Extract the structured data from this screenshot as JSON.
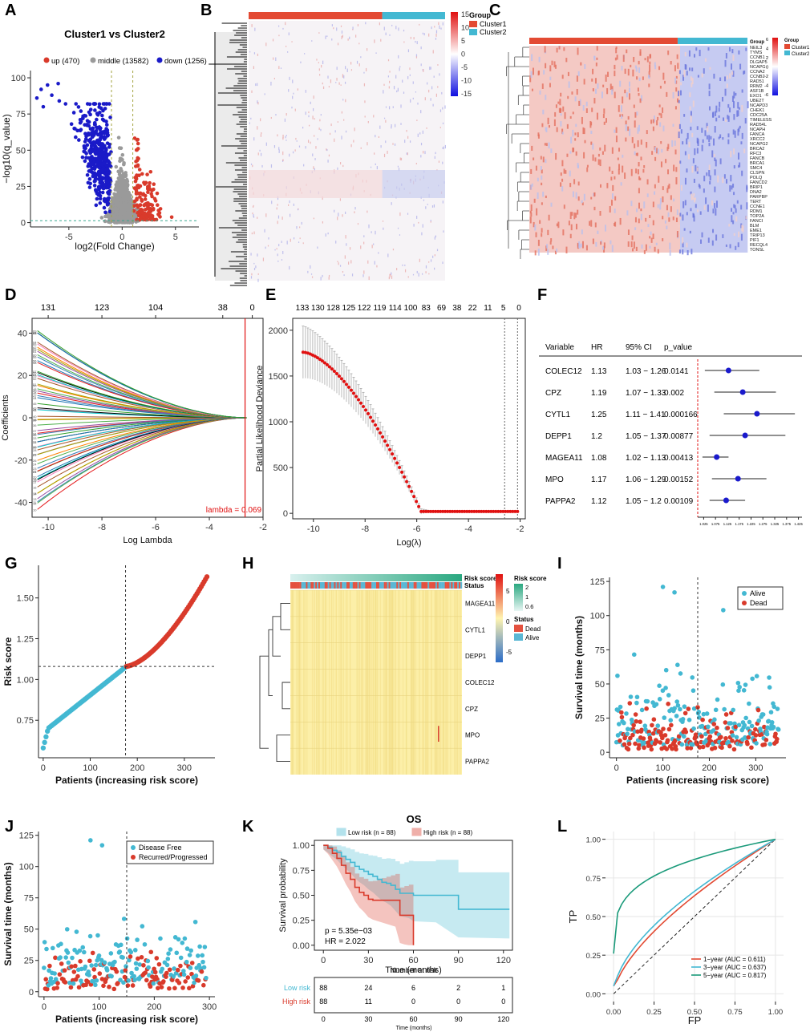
{
  "panel_labels": [
    "A",
    "B",
    "C",
    "D",
    "E",
    "F",
    "G",
    "H",
    "I",
    "J",
    "K",
    "L"
  ],
  "colors": {
    "red": "#d93a2b",
    "blue": "#1a1ac8",
    "grey": "#9a9a9a",
    "cyan": "#43b8d2",
    "green": "#1a9a7a",
    "heat_red": "#e34a33",
    "heat_blue": "#2b3bd8",
    "yellow": "#fcefa8"
  },
  "chart_data": [
    {
      "id": "A",
      "type": "scatter",
      "title": "Cluster1 vs Cluster2",
      "legend": [
        {
          "label": "up (470)",
          "color": "#d93a2b"
        },
        {
          "label": "middle (13582)",
          "color": "#9a9a9a"
        },
        {
          "label": "down (1256)",
          "color": "#1a1ac8"
        }
      ],
      "xlabel": "log2(Fold Change)",
      "ylabel": "−log10(q_value)",
      "xlim": [
        -8.6,
        7.2
      ],
      "ylim": [
        -3,
        105
      ],
      "xticks": [
        -5,
        0,
        5
      ],
      "yticks": [
        0,
        25,
        50,
        75,
        100
      ],
      "vlines": [
        -1,
        1
      ],
      "hline": 1.3
    },
    {
      "id": "B",
      "type": "heatmap",
      "legend_title": "Group",
      "groups": [
        "Cluster1",
        "Cluster2"
      ],
      "scale_ticks": [
        15,
        10,
        5,
        0,
        -5,
        -10,
        -15
      ],
      "group_split": 0.68
    },
    {
      "id": "C",
      "type": "heatmap",
      "legend_title": "Group",
      "groups": [
        "Cluster1",
        "Cluster2"
      ],
      "group_row_label": "Group",
      "scale_ticks": [
        6,
        4,
        2,
        0,
        -2,
        -4,
        -6
      ],
      "group_split": 0.68,
      "genes": [
        "NEIL3",
        "TYMS",
        "CCNB1",
        "DLGAP5",
        "NCAPG",
        "CCNA2",
        "CCNB2",
        "RAD51",
        "RRM2",
        "ASF1B",
        "EXO1",
        "UBE2T",
        "NCAPD3",
        "CHEK1",
        "CDC25A",
        "TIMELESS",
        "RAD54L",
        "NCAPH",
        "FANCA",
        "XRCC2",
        "NCAPG2",
        "BRCA2",
        "RFC3",
        "FANCB",
        "BRCA1",
        "SMC4",
        "CLSPN",
        "POLQ",
        "FANCD2",
        "BRIP1",
        "DNA2",
        "PARPBP",
        "TERT",
        "CCNE1",
        "RDM1",
        "TOP2A",
        "FANCI",
        "BLM",
        "EME1",
        "TRIP13",
        "PIF1",
        "RECQL4",
        "TONSL"
      ]
    },
    {
      "id": "D",
      "type": "line",
      "top_ticks": [
        "131",
        "123",
        "104",
        "38",
        "0"
      ],
      "xlabel": "Log Lambda",
      "ylabel": "Coefficients",
      "xlim": [
        -10.6,
        -2.0
      ],
      "ylim": [
        -47,
        47
      ],
      "xticks": [
        -10,
        -8,
        -6,
        -4,
        -2
      ],
      "yticks": [
        -40,
        -20,
        0,
        20,
        40
      ],
      "lambda_line": -2.67,
      "lambda_label": "lambda = 0.069"
    },
    {
      "id": "E",
      "type": "line",
      "top_ticks": [
        "133",
        "130",
        "128",
        "125",
        "122",
        "119",
        "114",
        "100",
        "83",
        "69",
        "38",
        "22",
        "11",
        "5",
        "0"
      ],
      "xlabel": "Log(λ)",
      "ylabel": "Partial Likelihood Deviance",
      "xlim": [
        -10.8,
        -1.8
      ],
      "ylim": [
        -60,
        2130
      ],
      "xticks": [
        -10,
        -8,
        -6,
        -4,
        -2
      ],
      "yticks": [
        0,
        500,
        1000,
        1500,
        2000
      ],
      "vlines": [
        -2.6,
        -2.1
      ],
      "x_start": -10.4,
      "x_end": -2.1,
      "y_start": 1740
    },
    {
      "id": "F",
      "type": "table",
      "columns": [
        "Variable",
        "HR",
        "95% CI",
        "p_value"
      ],
      "rows": [
        {
          "variable": "COLEC12",
          "hr": "1.13",
          "ci": "1.03 − 1.26",
          "p": "0.0141",
          "hr_v": 1.13,
          "lo": 1.03,
          "hi": 1.26
        },
        {
          "variable": "CPZ",
          "hr": "1.19",
          "ci": "1.07 − 1.33",
          "p": "0.002",
          "hr_v": 1.19,
          "lo": 1.07,
          "hi": 1.33
        },
        {
          "variable": "CYTL1",
          "hr": "1.25",
          "ci": "1.11 − 1.41",
          "p": "0.000166",
          "hr_v": 1.25,
          "lo": 1.11,
          "hi": 1.41
        },
        {
          "variable": "DEPP1",
          "hr": "1.2",
          "ci": "1.05 − 1.37",
          "p": "0.00877",
          "hr_v": 1.2,
          "lo": 1.05,
          "hi": 1.37
        },
        {
          "variable": "MAGEA11",
          "hr": "1.08",
          "ci": "1.02 − 1.13",
          "p": "0.00413",
          "hr_v": 1.08,
          "lo": 1.02,
          "hi": 1.13
        },
        {
          "variable": "MPO",
          "hr": "1.17",
          "ci": "1.06 − 1.29",
          "p": "0.00152",
          "hr_v": 1.17,
          "lo": 1.06,
          "hi": 1.29
        },
        {
          "variable": "PAPPA2",
          "hr": "1.12",
          "ci": "1.05 − 1.2",
          "p": "0.00109",
          "hr_v": 1.12,
          "lo": 1.05,
          "hi": 1.2
        }
      ],
      "axis_ticks": [
        "1.025",
        "1.075",
        "1.125",
        "1.175",
        "1.225",
        "1.275",
        "1.325",
        "1.375",
        "1.425"
      ],
      "axis_range": [
        1.0,
        1.44
      ],
      "ref_line": 1.0
    },
    {
      "id": "G",
      "type": "scatter",
      "xlabel": "Patients (increasing risk score)",
      "ylabel": "Risk score",
      "xlim": [
        -10,
        365
      ],
      "ylim": [
        0.52,
        1.7
      ],
      "xticks": [
        0,
        100,
        200,
        300
      ],
      "yticks": [
        0.75,
        1.0,
        1.25,
        1.5
      ],
      "n": 350,
      "cutoff_x": 175,
      "cutoff_y": 1.08
    },
    {
      "id": "H",
      "type": "heatmap",
      "top_rows": [
        "Risk score",
        "Status"
      ],
      "genes": [
        "MAGEA11",
        "CYTL1",
        "DEPP1",
        "COLEC12",
        "CPZ",
        "MPO",
        "PAPPA2"
      ],
      "scale_ticks": [
        5,
        0,
        -5
      ],
      "legend_risk_title": "Risk score",
      "legend_risk_ticks": [
        2,
        1,
        0.6
      ],
      "legend_status_title": "Status",
      "status_labels": [
        "Dead",
        "Alive"
      ]
    },
    {
      "id": "I",
      "type": "scatter",
      "legend": [
        {
          "label": "Alive",
          "color": "#43b8d2"
        },
        {
          "label": "Dead",
          "color": "#d93a2b"
        }
      ],
      "xlabel": "Patients (increasing risk score)",
      "ylabel": "Survival time (months)",
      "xlim": [
        -15,
        365
      ],
      "ylim": [
        -4,
        128
      ],
      "xticks": [
        0,
        100,
        200,
        300
      ],
      "yticks": [
        0,
        25,
        50,
        75,
        100,
        125
      ],
      "cutoff_x": 175
    },
    {
      "id": "J",
      "type": "scatter",
      "legend": [
        {
          "label": "Disease Free",
          "color": "#43b8d2"
        },
        {
          "label": "Recurred/Progressed",
          "color": "#d93a2b"
        }
      ],
      "xlabel": "Patients (increasing risk score)",
      "ylabel": "Survival time (months)",
      "xlim": [
        -10,
        310
      ],
      "ylim": [
        -4,
        128
      ],
      "xticks": [
        0,
        100,
        200,
        300
      ],
      "yticks": [
        0,
        25,
        50,
        75,
        100,
        125
      ],
      "cutoff_x": 150
    },
    {
      "id": "K",
      "type": "line",
      "title": "OS",
      "legend": [
        {
          "label": "Low risk (n = 88)",
          "color": "#43b8d2"
        },
        {
          "label": "High risk (n = 88)",
          "color": "#d93a2b"
        }
      ],
      "xlabel": "Time (months)",
      "ylabel": "Survival probability",
      "xlim": [
        -6,
        126
      ],
      "ylim": [
        -0.05,
        1.05
      ],
      "xticks": [
        0,
        30,
        60,
        90,
        120
      ],
      "yticks": [
        0.0,
        0.25,
        0.5,
        0.75,
        1.0
      ],
      "ytick_labels": [
        "0.00",
        "0.25",
        "0.50",
        "0.75",
        "1.00"
      ],
      "pvalue": "p = 5.35e−03",
      "hr": "HR = 2.022",
      "low_curve": {
        "x": [
          0,
          3,
          6,
          9,
          12,
          15,
          18,
          21,
          24,
          27,
          30,
          33,
          36,
          39,
          42,
          45,
          48,
          51,
          54,
          57,
          60,
          75,
          90,
          124
        ],
        "y": [
          1.0,
          0.98,
          0.95,
          0.93,
          0.89,
          0.86,
          0.83,
          0.79,
          0.76,
          0.74,
          0.71,
          0.69,
          0.66,
          0.63,
          0.62,
          0.6,
          0.56,
          0.52,
          0.52,
          0.52,
          0.5,
          0.5,
          0.36,
          0.36
        ]
      },
      "high_curve": {
        "x": [
          0,
          3,
          6,
          9,
          12,
          15,
          18,
          21,
          24,
          27,
          30,
          33,
          36,
          39,
          42,
          45,
          48,
          51,
          54,
          57,
          60
        ],
        "y": [
          1.0,
          0.97,
          0.92,
          0.87,
          0.8,
          0.72,
          0.66,
          0.58,
          0.53,
          0.5,
          0.46,
          0.45,
          0.45,
          0.45,
          0.45,
          0.45,
          0.45,
          0.3,
          0.3,
          0.3,
          0.0
        ]
      },
      "risk_table": {
        "title": "Number at risk",
        "xlabel": "Time (months)",
        "rows": [
          {
            "label": "Low risk",
            "values": [
              "88",
              "24",
              "6",
              "2",
              "1"
            ]
          },
          {
            "label": "High risk",
            "values": [
              "88",
              "11",
              "0",
              "0",
              "0"
            ]
          }
        ],
        "times": [
          0,
          30,
          60,
          90,
          120
        ]
      }
    },
    {
      "id": "L",
      "type": "line",
      "xlabel": "FP",
      "ylabel": "TP",
      "xlim": [
        -0.05,
        1.05
      ],
      "ylim": [
        -0.05,
        1.05
      ],
      "xticks": [
        0.0,
        0.25,
        0.5,
        0.75,
        1.0
      ],
      "yticks": [
        0.0,
        0.25,
        0.5,
        0.75,
        1.0
      ],
      "tick_labels": [
        "0.00",
        "0.25",
        "0.50",
        "0.75",
        "1.00"
      ],
      "series": [
        {
          "name": "1−year (AUC = 0.611)",
          "color": "#e24a33",
          "auc": 0.611
        },
        {
          "name": "3−year (AUC = 0.637)",
          "color": "#43b8d2",
          "auc": 0.637
        },
        {
          "name": "5−year (AUC = 0.817)",
          "color": "#1a9a7a",
          "auc": 0.817
        }
      ]
    }
  ]
}
